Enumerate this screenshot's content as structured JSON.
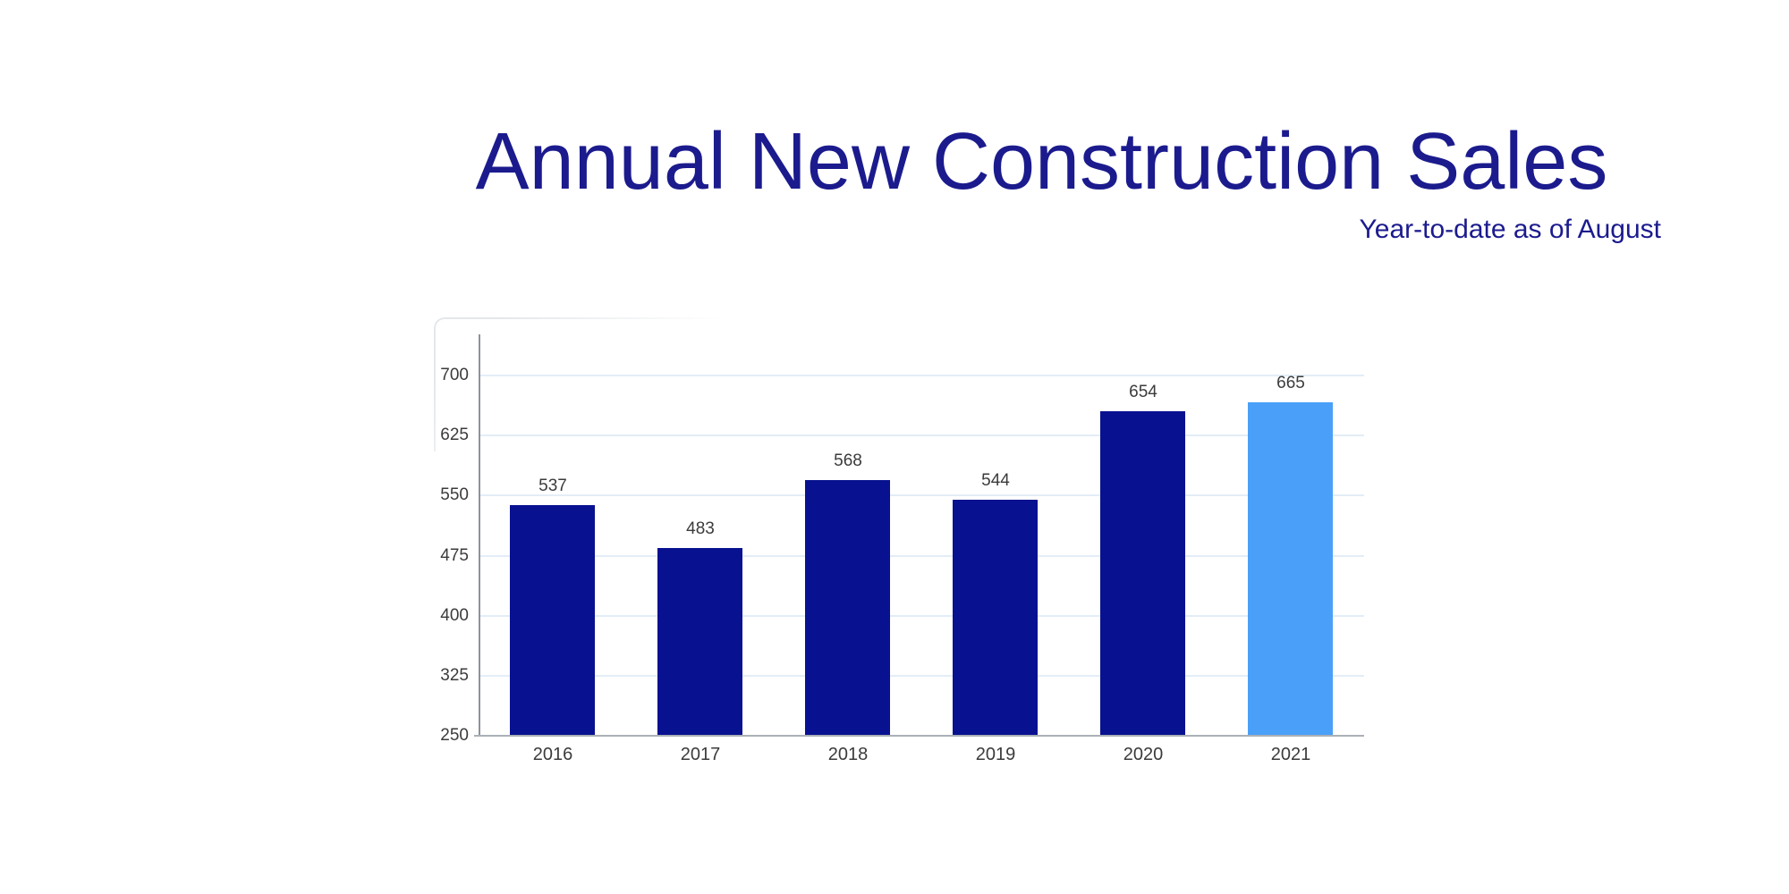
{
  "chart_data": {
    "type": "bar",
    "title": "Annual New Construction Sales",
    "subtitle": "Year-to-date as of August",
    "categories": [
      "2016",
      "2017",
      "2018",
      "2019",
      "2020",
      "2021"
    ],
    "values": [
      537,
      483,
      568,
      544,
      654,
      665
    ],
    "data_labels": [
      537,
      483,
      568,
      544,
      654,
      665
    ],
    "bar_colors": [
      "#081190",
      "#081190",
      "#081190",
      "#081190",
      "#081190",
      "#4AA0F8"
    ],
    "highlighted_category": "2021",
    "xlabel": "",
    "ylabel": "",
    "ylim": [
      250,
      700
    ],
    "yticks": [
      250,
      325,
      400,
      475,
      550,
      625,
      700
    ],
    "grid": true,
    "legend": false
  },
  "style": {
    "title_color": "#1b1b8e",
    "subtitle_color": "#1b1b8e",
    "bar_color_default": "#081190",
    "bar_color_highlight": "#4AA0F8",
    "gridline_color": "#e3edf7",
    "axis_line_color": "#8d939a",
    "baseline_color": "rgba(150,158,165,0.8)",
    "tick_label_color": "#3b3b3b",
    "value_label_color": "#3b3b3b",
    "background_color": "#ffffff"
  }
}
